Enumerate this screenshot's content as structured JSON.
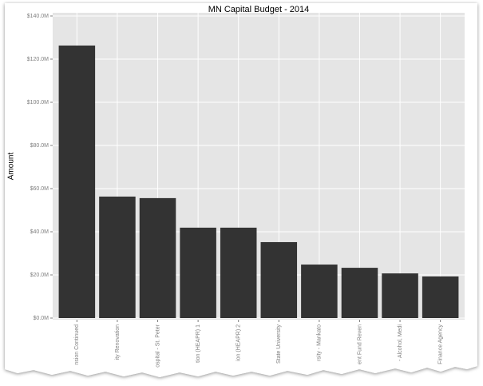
{
  "chart_data": {
    "type": "bar",
    "title": "MN Capital Budget - 2014",
    "y_label": "Amount",
    "categories": [
      "nsion Continued",
      "ity Renovation",
      "ospital - St. Peter",
      "tion (HEAPR) 1",
      "ion (HEAPR) 2",
      "State University",
      "rsity - Mankato",
      "ent Fund Reven",
      "- Alcohol, Medi",
      "Finance Agency"
    ],
    "values": [
      126.3,
      56.3,
      55.6,
      41.9,
      41.9,
      35.2,
      24.8,
      23.3,
      20.7,
      19.3
    ],
    "color": "#333333",
    "ylim": [
      0,
      140
    ],
    "yticks": [
      {
        "value": 0,
        "label": "$0.0M"
      },
      {
        "value": 20,
        "label": "$20.0M"
      },
      {
        "value": 40,
        "label": "$40.0M"
      },
      {
        "value": 60,
        "label": "$60.0M"
      },
      {
        "value": 80,
        "label": "$80.0M"
      },
      {
        "value": 100,
        "label": "$100.0M"
      },
      {
        "value": 120,
        "label": "$120.0M"
      },
      {
        "value": 140,
        "label": "$140.0M"
      }
    ],
    "grid": true
  }
}
